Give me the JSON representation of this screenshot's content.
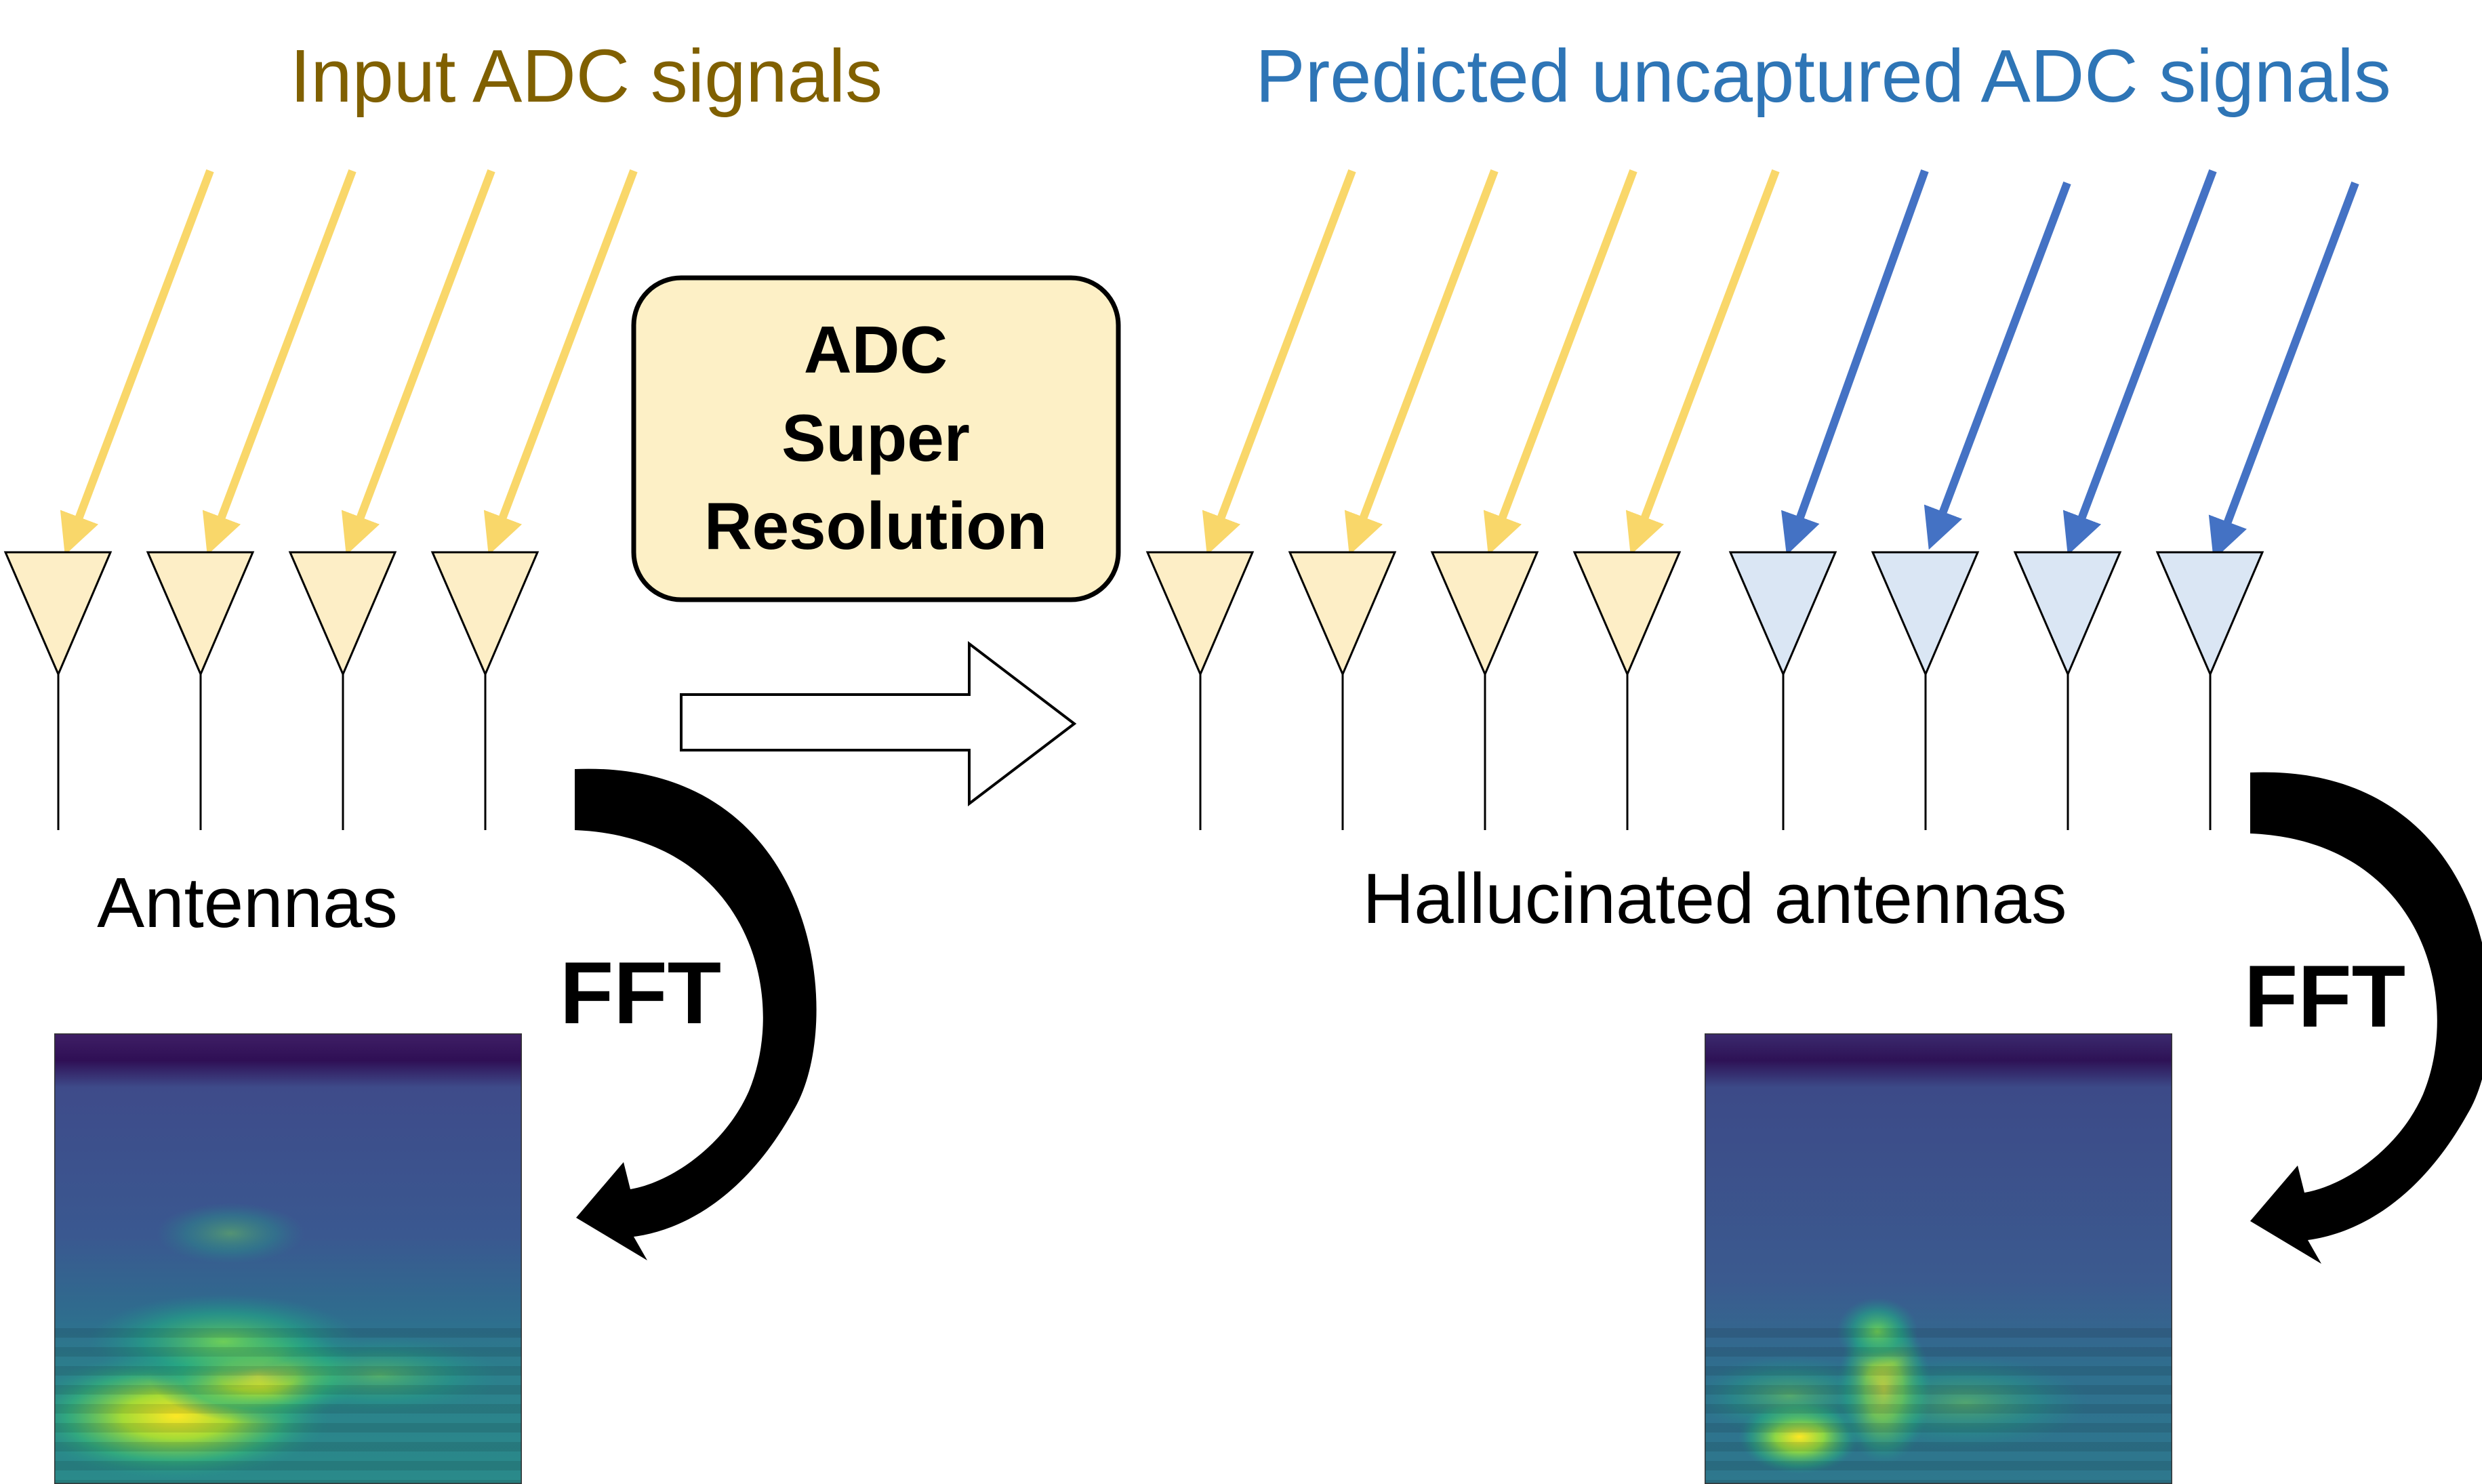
{
  "title_left": "Input ADC signals",
  "title_right": "Predicted uncaptured ADC signals",
  "process_box": {
    "line1": "ADC",
    "line2": "Super",
    "line3": "Resolution"
  },
  "label_left": "Antennas",
  "label_right": "Hallucinated antennas",
  "fft_left": "FFT",
  "fft_right": "FFT",
  "colors": {
    "input": "#f9d76a",
    "input_fill": "#fdeec6",
    "predicted": "#4472c4",
    "predicted_fill": "#dae6f4",
    "title_left": "#806000",
    "title_right": "#2e75b6",
    "box_fill": "#fdf0c6",
    "heatmap_low": "#3b3b7d",
    "heatmap_high": "#fde725"
  },
  "antennas_left": {
    "count": 4,
    "type": "input"
  },
  "antennas_right": {
    "input_count": 4,
    "predicted_count": 4
  }
}
